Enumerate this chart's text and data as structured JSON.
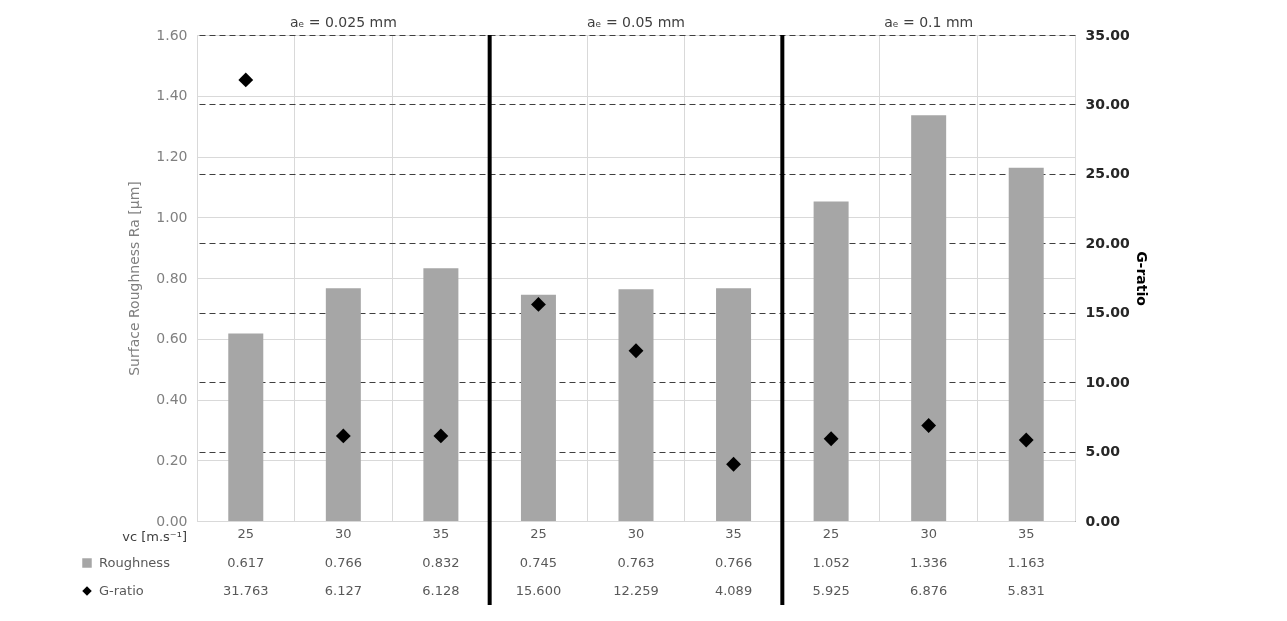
{
  "chart_data": {
    "type": "bar",
    "categories": [
      "25",
      "30",
      "35",
      "25",
      "30",
      "35",
      "25",
      "30",
      "35"
    ],
    "series": [
      {
        "name": "Roughness",
        "color": "#a6a6a6",
        "values": [
          0.617,
          0.766,
          0.832,
          0.745,
          0.763,
          0.766,
          1.052,
          1.336,
          1.163
        ],
        "value_labels": [
          "0.617",
          "0.766",
          "0.832",
          "0.745",
          "0.763",
          "0.766",
          "1.052",
          "1.336",
          "1.163"
        ]
      },
      {
        "name": "G-ratio",
        "type": "scatter",
        "axis": "y2",
        "marker": "diamond",
        "color": "#000000",
        "values": [
          31.763,
          6.127,
          6.128,
          15.6,
          12.259,
          4.089,
          5.925,
          6.876,
          5.831
        ],
        "value_labels": [
          "31.763",
          "6.127",
          "6.128",
          "15.600",
          "12.259",
          "4.089",
          "5.925",
          "6.876",
          "5.831"
        ]
      }
    ],
    "xlabel": "vc [m.s⁻¹]",
    "ylabel": "Surface Roughness Ra [µm]",
    "y2label": "G-ratio",
    "annotations": [
      "aₑ = 0.025 mm",
      "aₑ = 0.05 mm",
      "aₑ = 0.1 mm"
    ],
    "ylim": [
      0,
      1.6
    ],
    "yticks": [
      {
        "value": 0,
        "label": "0.00"
      },
      {
        "value": 0.2,
        "label": "0.20"
      },
      {
        "value": 0.4,
        "label": "0.40"
      },
      {
        "value": 0.6,
        "label": "0.60"
      },
      {
        "value": 0.8,
        "label": "0.80"
      },
      {
        "value": 1.0,
        "label": "1.00"
      },
      {
        "value": 1.2,
        "label": "1.20"
      },
      {
        "value": 1.4,
        "label": "1.40"
      },
      {
        "value": 1.6,
        "label": "1.60"
      }
    ],
    "y2lim": [
      0,
      35
    ],
    "y2ticks": [
      {
        "value": 0,
        "label": "0.00"
      },
      {
        "value": 5,
        "label": "5.00"
      },
      {
        "value": 10,
        "label": "10.00"
      },
      {
        "value": 15,
        "label": "15.00"
      },
      {
        "value": 20,
        "label": "20.00"
      },
      {
        "value": 25,
        "label": "25.00"
      },
      {
        "value": 30,
        "label": "30.00"
      },
      {
        "value": 35,
        "label": "35.00"
      }
    ],
    "grid": true,
    "legend": "bottom"
  }
}
